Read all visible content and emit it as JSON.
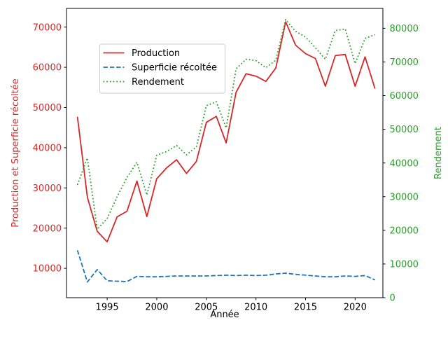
{
  "figure": {
    "background": "#ffffff"
  },
  "chart_data": {
    "type": "line",
    "title": "",
    "xlabel": "Année",
    "ylabel_left": "Production et Superficie récoltée",
    "ylabel_right": "Rendement",
    "ylabel_left_color": "#d62728",
    "ylabel_right_color": "#2ca02c",
    "x_tick_label_color": "#000000",
    "left_tick_label_color": "#d62728",
    "right_tick_label_color": "#2ca02c",
    "spine_color": "#000000",
    "grid": false,
    "xlim": [
      1990.9,
      2022.8
    ],
    "ylim_left": [
      2700,
      74650
    ],
    "ylim_right": [
      0,
      85900
    ],
    "x_ticks": [
      1995,
      2000,
      2005,
      2010,
      2015,
      2020
    ],
    "y_ticks_left": [
      10000,
      20000,
      30000,
      40000,
      50000,
      60000,
      70000
    ],
    "y_ticks_right": [
      0,
      10000,
      20000,
      30000,
      40000,
      50000,
      60000,
      70000,
      80000
    ],
    "x": [
      1992,
      1993,
      1994,
      1995,
      1996,
      1997,
      1998,
      1999,
      2000,
      2001,
      2002,
      2003,
      2004,
      2005,
      2006,
      2007,
      2008,
      2009,
      2010,
      2011,
      2012,
      2013,
      2014,
      2015,
      2016,
      2017,
      2018,
      2019,
      2020,
      2021,
      2022
    ],
    "series": [
      {
        "name": "Production",
        "axis": "left",
        "color": "#d62728",
        "style": "solid",
        "values": [
          47700,
          27700,
          19200,
          16600,
          22800,
          24200,
          31700,
          22900,
          32300,
          35000,
          37000,
          33600,
          36600,
          46300,
          47800,
          41200,
          53800,
          58400,
          57800,
          56500,
          59800,
          71300,
          65500,
          63400,
          62200,
          55300,
          62900,
          63200,
          55300,
          62600,
          54700
        ]
      },
      {
        "name": "Superficie récoltée",
        "axis": "left",
        "color": "#1f77b4",
        "style": "dashed",
        "values": [
          14500,
          6600,
          9700,
          6900,
          6800,
          6700,
          8000,
          7900,
          7900,
          8000,
          8100,
          8100,
          8100,
          8100,
          8200,
          8300,
          8200,
          8300,
          8200,
          8300,
          8600,
          8800,
          8500,
          8300,
          8100,
          7900,
          7900,
          8100,
          8000,
          8200,
          7100
        ]
      },
      {
        "name": "Rendement",
        "axis": "right",
        "color": "#2ca02c",
        "style": "dotted",
        "values": [
          33500,
          41500,
          20300,
          23500,
          30000,
          35700,
          40200,
          30500,
          42300,
          43400,
          45200,
          42400,
          44800,
          57000,
          58200,
          50400,
          68000,
          70800,
          70400,
          68300,
          70500,
          82600,
          79100,
          77400,
          74200,
          70800,
          79300,
          79800,
          69500,
          77000,
          78100
        ]
      }
    ],
    "legend": {
      "position": "upper-left-inset",
      "background": "#ffffff",
      "border_color": "#cccccc",
      "entries": [
        "Production",
        "Superficie récoltée",
        "Rendement"
      ]
    }
  }
}
